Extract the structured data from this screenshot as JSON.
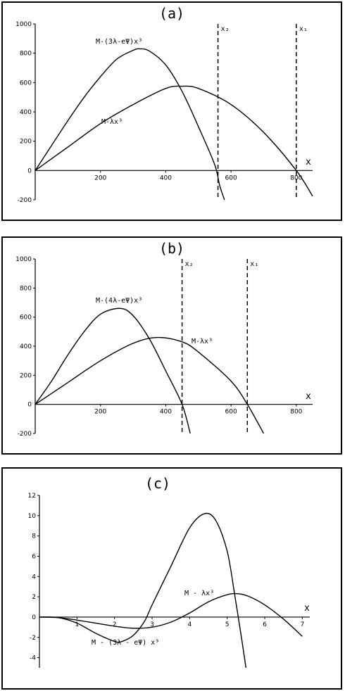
{
  "panels": [
    {
      "title": "(a)",
      "xlabel": "x",
      "xlim": [
        0,
        850
      ],
      "ylim": [
        -200,
        1000
      ],
      "xticks": [
        200,
        400,
        600,
        800
      ],
      "yticks": [
        -200,
        200,
        400,
        600,
        800,
        1000
      ],
      "vlines": [
        {
          "x": 560,
          "label": "x2"
        },
        {
          "x": 800,
          "label": "x1"
        }
      ],
      "series": [
        {
          "label": "M-(3λ-e^Ψ)x³",
          "x": [
            0,
            50,
            100,
            150,
            200,
            250,
            300,
            320,
            350,
            400,
            450,
            500,
            550,
            565,
            580
          ],
          "y": [
            0,
            170,
            340,
            500,
            640,
            760,
            820,
            830,
            815,
            720,
            540,
            300,
            40,
            -100,
            -200
          ]
        },
        {
          "label": "M-λx³",
          "x": [
            0,
            100,
            200,
            300,
            400,
            450,
            500,
            600,
            700,
            800,
            850
          ],
          "y": [
            0,
            160,
            320,
            450,
            560,
            575,
            560,
            450,
            260,
            0,
            -175
          ]
        }
      ]
    },
    {
      "title": "(b)",
      "xlabel": "x",
      "xlim": [
        0,
        850
      ],
      "ylim": [
        -200,
        1000
      ],
      "xticks": [
        200,
        400,
        600,
        800
      ],
      "yticks": [
        -200,
        200,
        400,
        600,
        800,
        1000
      ],
      "vlines": [
        {
          "x": 450,
          "label": "x2"
        },
        {
          "x": 650,
          "label": "x1"
        }
      ],
      "series": [
        {
          "label": "M-(4λ-e^Ψ)x³",
          "x": [
            0,
            50,
            100,
            150,
            200,
            260,
            300,
            350,
            400,
            450,
            475
          ],
          "y": [
            0,
            160,
            340,
            500,
            620,
            660,
            610,
            450,
            230,
            0,
            -200
          ]
        },
        {
          "label": "M-λx³",
          "x": [
            0,
            100,
            200,
            300,
            375,
            450,
            500,
            600,
            650,
            700
          ],
          "y": [
            0,
            150,
            300,
            420,
            460,
            430,
            360,
            160,
            0,
            -200
          ]
        }
      ]
    },
    {
      "title": "(c)",
      "xlabel": "x",
      "xlim": [
        0,
        7.2
      ],
      "ylim": [
        -5,
        12
      ],
      "xticks": [
        1,
        2,
        3,
        4,
        5,
        6,
        7
      ],
      "yticks": [
        -4,
        -2,
        2,
        4,
        6,
        8,
        10,
        12
      ],
      "vlines": [],
      "series": [
        {
          "label": "M - (3λ - e^Ψ) x³",
          "x": [
            0,
            0.5,
            1,
            1.5,
            2,
            2.2,
            2.5,
            2.8,
            3,
            3.5,
            4,
            4.4,
            4.7,
            5,
            5.2,
            5.4,
            5.5
          ],
          "y": [
            0,
            -0.05,
            -0.6,
            -1.6,
            -2.4,
            -2.4,
            -1.8,
            -0.4,
            1.2,
            5,
            8.8,
            10.2,
            9.5,
            6.5,
            2.2,
            -2.5,
            -5
          ]
        },
        {
          "label": "M - λx³",
          "x": [
            0,
            0.5,
            1,
            1.5,
            2,
            2.5,
            3,
            3.5,
            4,
            4.5,
            5,
            5.3,
            5.6,
            6,
            6.5,
            7
          ],
          "y": [
            0,
            -0.05,
            -0.3,
            -0.6,
            -0.9,
            -1.1,
            -1.0,
            -0.5,
            0.4,
            1.5,
            2.2,
            2.3,
            2.0,
            1.2,
            -0.2,
            -1.9
          ]
        }
      ]
    }
  ],
  "chart_data": [
    {
      "type": "line",
      "title": "(a)",
      "xlabel": "x",
      "ylabel": "",
      "xlim": [
        0,
        850
      ],
      "ylim": [
        -200,
        1000
      ],
      "vertical_lines": [
        {
          "x": 560,
          "label": "x2"
        },
        {
          "x": 800,
          "label": "x1"
        }
      ],
      "series": [
        {
          "name": "M-(3λ-e^Ψ)x³",
          "x": [
            0,
            50,
            100,
            150,
            200,
            250,
            300,
            320,
            350,
            400,
            450,
            500,
            550,
            565,
            580
          ],
          "y": [
            0,
            170,
            340,
            500,
            640,
            760,
            820,
            830,
            815,
            720,
            540,
            300,
            40,
            -100,
            -200
          ]
        },
        {
          "name": "M-λx³",
          "x": [
            0,
            100,
            200,
            300,
            400,
            450,
            500,
            600,
            700,
            800,
            850
          ],
          "y": [
            0,
            160,
            320,
            450,
            560,
            575,
            560,
            450,
            260,
            0,
            -175
          ]
        }
      ]
    },
    {
      "type": "line",
      "title": "(b)",
      "xlabel": "x",
      "ylabel": "",
      "xlim": [
        0,
        850
      ],
      "ylim": [
        -200,
        1000
      ],
      "vertical_lines": [
        {
          "x": 450,
          "label": "x2"
        },
        {
          "x": 650,
          "label": "x1"
        }
      ],
      "series": [
        {
          "name": "M-(4λ-e^Ψ)x³",
          "x": [
            0,
            50,
            100,
            150,
            200,
            260,
            300,
            350,
            400,
            450,
            475
          ],
          "y": [
            0,
            160,
            340,
            500,
            620,
            660,
            610,
            450,
            230,
            0,
            -200
          ]
        },
        {
          "name": "M-λx³",
          "x": [
            0,
            100,
            200,
            300,
            375,
            450,
            500,
            600,
            650,
            700
          ],
          "y": [
            0,
            150,
            300,
            420,
            460,
            430,
            360,
            160,
            0,
            -200
          ]
        }
      ]
    },
    {
      "type": "line",
      "title": "(c)",
      "xlabel": "x",
      "ylabel": "",
      "xlim": [
        0,
        7.2
      ],
      "ylim": [
        -5,
        12
      ],
      "series": [
        {
          "name": "M - (3λ - e^Ψ) x³",
          "x": [
            0,
            0.5,
            1,
            1.5,
            2,
            2.2,
            2.5,
            2.8,
            3,
            3.5,
            4,
            4.4,
            4.7,
            5,
            5.2,
            5.4,
            5.5
          ],
          "y": [
            0,
            -0.05,
            -0.6,
            -1.6,
            -2.4,
            -2.4,
            -1.8,
            -0.4,
            1.2,
            5,
            8.8,
            10.2,
            9.5,
            6.5,
            2.2,
            -2.5,
            -5
          ]
        },
        {
          "name": "M - λx³",
          "x": [
            0,
            0.5,
            1,
            1.5,
            2,
            2.5,
            3,
            3.5,
            4,
            4.5,
            5,
            5.3,
            5.6,
            6,
            6.5,
            7
          ],
          "y": [
            0,
            -0.05,
            -0.3,
            -0.6,
            -0.9,
            -1.1,
            -1.0,
            -0.5,
            0.4,
            1.5,
            2.2,
            2.3,
            2.0,
            1.2,
            -0.2,
            -1.9
          ]
        }
      ]
    }
  ]
}
